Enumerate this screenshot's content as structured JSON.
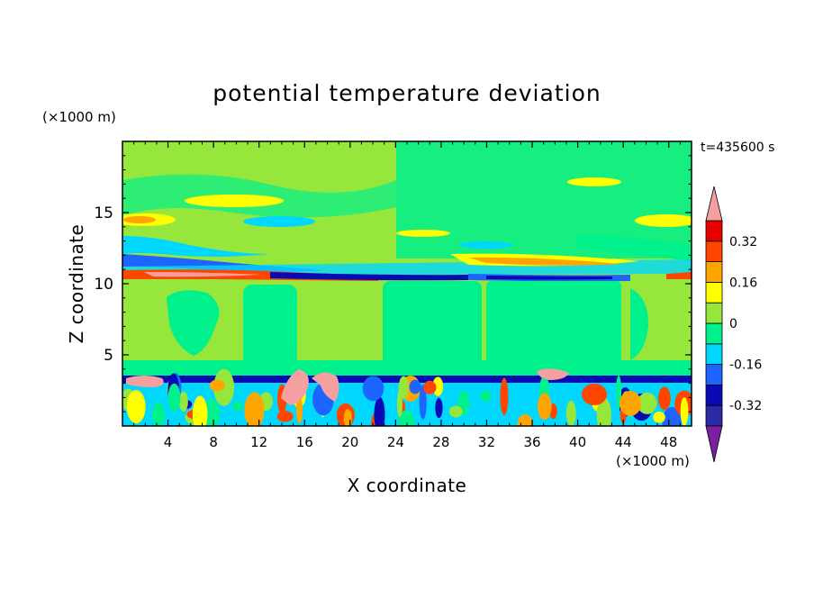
{
  "chart_data": {
    "type": "heatmap",
    "title": "potential temperature deviation",
    "xlabel": "X coordinate",
    "ylabel": "Z coordinate",
    "x_unit": "(×1000 m)",
    "y_unit": "(×1000 m)",
    "time_label": "t=435600 s",
    "xlim": [
      0,
      50
    ],
    "ylim": [
      0,
      20
    ],
    "x_ticks": [
      "4",
      "8",
      "12",
      "16",
      "20",
      "24",
      "28",
      "32",
      "36",
      "40",
      "44",
      "48"
    ],
    "y_ticks": [
      "5",
      "10",
      "15"
    ],
    "colorbar": {
      "labels": [
        "0.32",
        "0.16",
        "0",
        "-0.16",
        "-0.32"
      ],
      "levels": [
        -0.4,
        -0.32,
        -0.24,
        -0.16,
        -0.08,
        0,
        0.08,
        0.16,
        0.24,
        0.32,
        0.4
      ],
      "colors": [
        "#7b1fa2",
        "#2a2aa5",
        "#0a0ab5",
        "#1e64ff",
        "#00d7ff",
        "#00f08c",
        "#96e63c",
        "#ffff00",
        "#ffa500",
        "#ff4600",
        "#e60000",
        "#f4a0a0"
      ]
    },
    "field": [
      {
        "z": [
          15.5,
          16.5
        ],
        "value": "positive",
        "note": "yellow band near z≈16"
      },
      {
        "z": [
          14,
          15
        ],
        "value": "positive",
        "note": "yellow/orange patches near z≈14.5"
      },
      {
        "z": [
          12.5,
          13.5
        ],
        "value": "negative",
        "note": "cyan band"
      },
      {
        "z": [
          10.2,
          11
        ],
        "value": "strong positive",
        "note": "red/pink layer near z≈10.5"
      },
      {
        "z": [
          9.8,
          10.4
        ],
        "value": "strong negative",
        "note": "dark blue layer"
      },
      {
        "z": [
          3,
          3.8
        ],
        "value": "strong negative",
        "note": "dark blue layer near z≈3.5 with pink eddies above"
      },
      {
        "z": [
          0,
          3
        ],
        "value": "mixed",
        "note": "turbulent boundary layer with alternating red and blue cells"
      }
    ]
  }
}
